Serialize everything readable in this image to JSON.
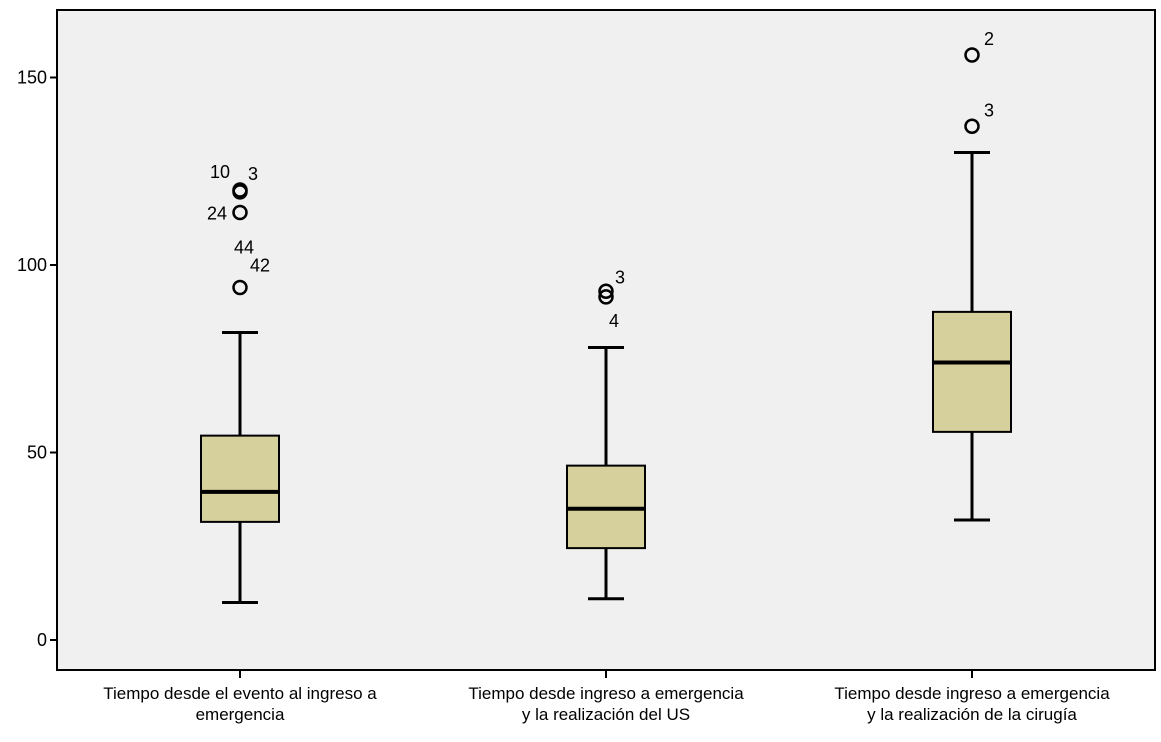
{
  "chart_data": {
    "type": "boxplot",
    "title": "",
    "xlabel": "",
    "ylabel": "",
    "ylim": [
      -8,
      168
    ],
    "yticks": [
      0,
      50,
      100,
      150
    ],
    "grid": false,
    "legend": "none",
    "colors": {
      "plot_bg": "#f0f0f0",
      "box_fill": "#d6d09d",
      "stroke": "#000000"
    },
    "categories": [
      {
        "label_lines": [
          "Tiempo desde el evento al ingreso a",
          "emergencia"
        ]
      },
      {
        "label_lines": [
          "Tiempo desde ingreso a emergencia",
          "y la realización del US"
        ]
      },
      {
        "label_lines": [
          "Tiempo desde ingreso a emergencia",
          "y la realización de la cirugía"
        ]
      }
    ],
    "boxes": [
      {
        "whisker_low": 10,
        "q1": 31.5,
        "median": 39.5,
        "q3": 54.5,
        "whisker_high": 82,
        "outliers": [
          {
            "value": 120,
            "labels": [
              "10",
              "3"
            ]
          },
          {
            "value": 119.5,
            "labels": []
          },
          {
            "value": 114,
            "labels": [
              "24"
            ]
          },
          {
            "value": 94,
            "labels": [
              "44",
              "42"
            ]
          }
        ]
      },
      {
        "whisker_low": 11,
        "q1": 24.5,
        "median": 35,
        "q3": 46.5,
        "whisker_high": 78,
        "outliers": [
          {
            "value": 93,
            "labels": [
              "3"
            ]
          },
          {
            "value": 91.5,
            "labels": [
              "4"
            ]
          }
        ]
      },
      {
        "whisker_low": 32,
        "q1": 55.5,
        "median": 74,
        "q3": 87.5,
        "whisker_high": 130,
        "outliers": [
          {
            "value": 156,
            "labels": [
              "2"
            ]
          },
          {
            "value": 137,
            "labels": [
              "3"
            ]
          }
        ]
      }
    ]
  }
}
